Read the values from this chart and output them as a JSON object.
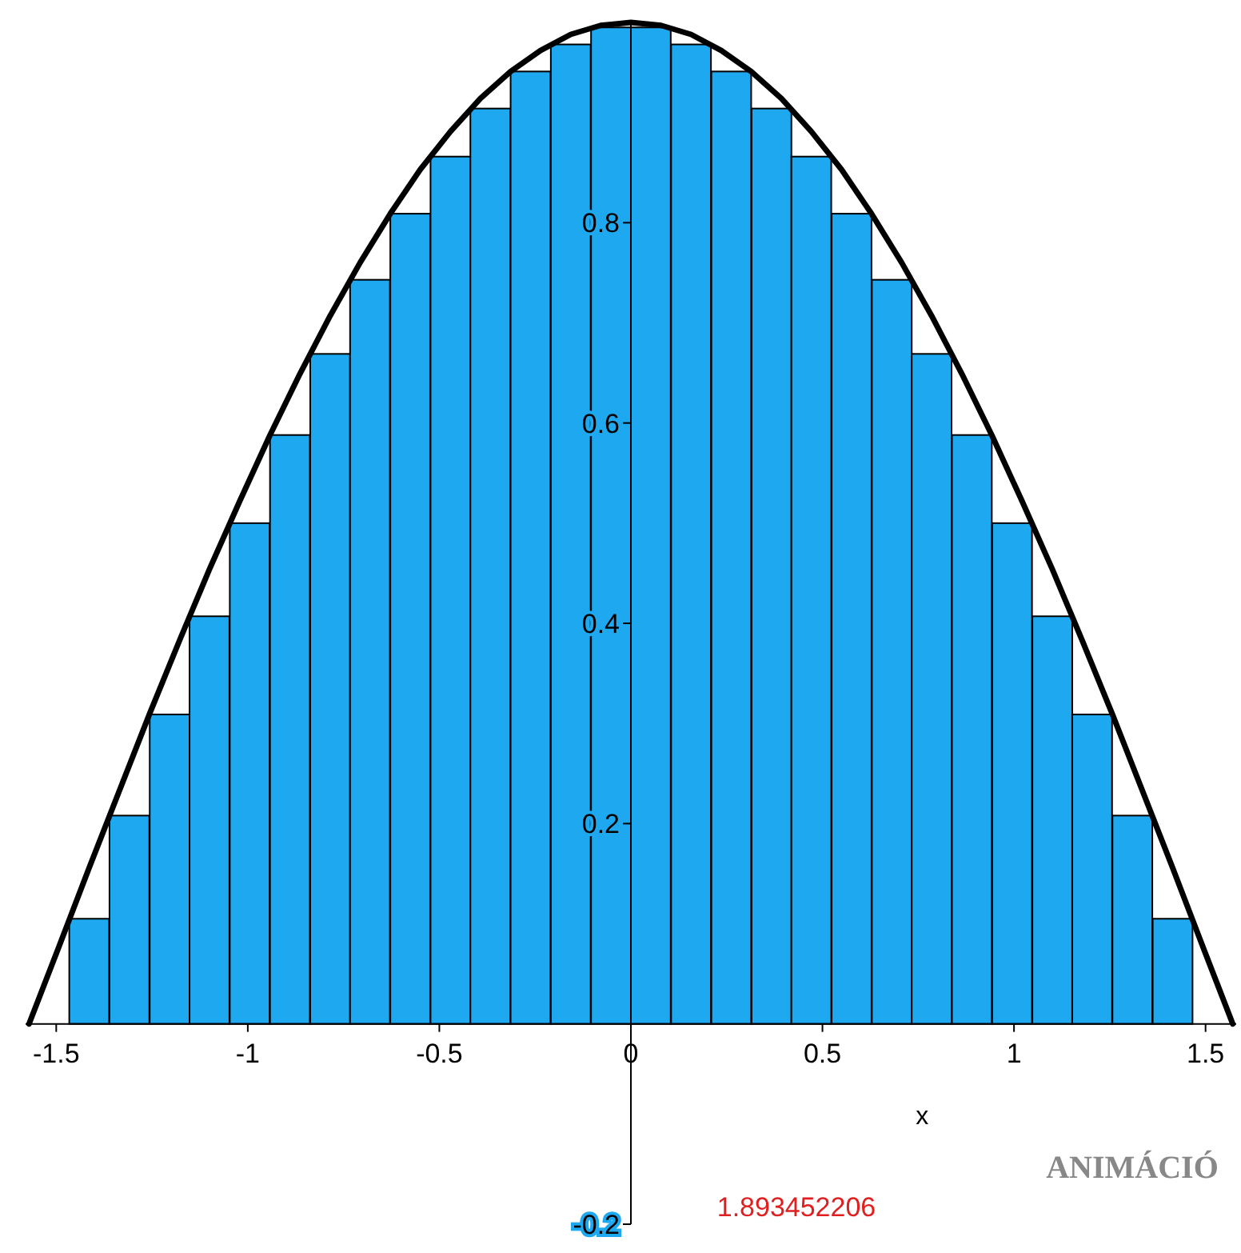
{
  "chart_data": {
    "type": "bar",
    "xlabel": "x",
    "xlim": [
      -1.58,
      1.58
    ],
    "ylim": [
      -0.2,
      1.0
    ],
    "xticks": [
      -1.5,
      -1,
      -0.5,
      0,
      0.5,
      1,
      1.5
    ],
    "yticks": [
      -0.2,
      0.2,
      0.4,
      0.6,
      0.8
    ],
    "series": [
      {
        "color": "#1ea8f0",
        "x": [
          -1.518,
          -1.414,
          -1.309,
          -1.204,
          -1.1,
          -0.995,
          -0.89,
          -0.785,
          -0.681,
          -0.576,
          -0.471,
          -0.367,
          -0.262,
          -0.157,
          -0.052,
          0.052,
          0.157,
          0.262,
          0.367,
          0.471,
          0.576,
          0.681,
          0.785,
          0.89,
          0.995,
          1.1,
          1.204,
          1.309,
          1.414,
          1.518
        ],
        "values": [
          0,
          0.105,
          0.208,
          0.309,
          0.407,
          0.5,
          0.588,
          0.669,
          0.743,
          0.809,
          0.866,
          0.914,
          0.951,
          0.978,
          0.995,
          0.995,
          0.978,
          0.951,
          0.914,
          0.866,
          0.809,
          0.743,
          0.669,
          0.588,
          0.5,
          0.407,
          0.309,
          0.208,
          0.105,
          0
        ]
      },
      {
        "type": "line",
        "color": "#000000",
        "x": [
          -1.571,
          -1.492,
          -1.414,
          -1.335,
          -1.257,
          -1.178,
          -1.1,
          -1.021,
          -0.942,
          -0.864,
          -0.785,
          -0.707,
          -0.628,
          -0.55,
          -0.471,
          -0.393,
          -0.314,
          -0.236,
          -0.157,
          -0.079,
          0,
          0.079,
          0.157,
          0.236,
          0.314,
          0.393,
          0.471,
          0.55,
          0.628,
          0.707,
          0.785,
          0.864,
          0.942,
          1.021,
          1.1,
          1.178,
          1.257,
          1.335,
          1.414,
          1.492,
          1.571
        ],
        "values": [
          0,
          0.078,
          0.156,
          0.233,
          0.309,
          0.383,
          0.454,
          0.522,
          0.588,
          0.649,
          0.707,
          0.76,
          0.809,
          0.853,
          0.891,
          0.924,
          0.951,
          0.972,
          0.988,
          0.997,
          1,
          0.997,
          0.988,
          0.972,
          0.951,
          0.924,
          0.891,
          0.853,
          0.809,
          0.76,
          0.707,
          0.649,
          0.588,
          0.522,
          0.454,
          0.383,
          0.309,
          0.233,
          0.156,
          0.078,
          0
        ]
      }
    ],
    "annotations": [
      "1.893452206",
      "ANIMÁCIÓ"
    ]
  }
}
